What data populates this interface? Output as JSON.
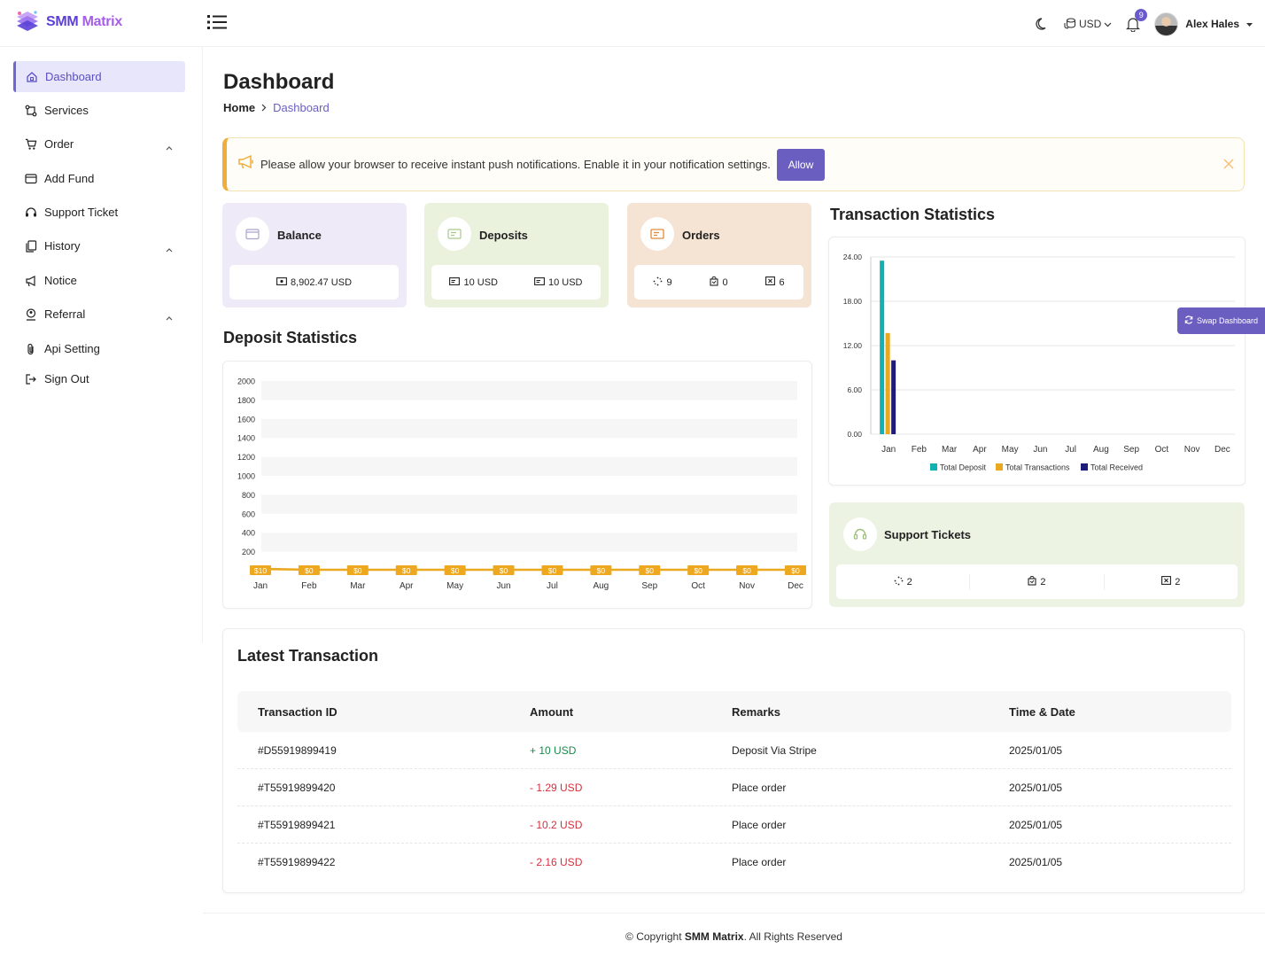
{
  "brand": {
    "part1": "SMM",
    "part2": "Matrix"
  },
  "header": {
    "currency": "USD",
    "notification_count": "9",
    "user_name": "Alex Hales"
  },
  "sidebar": {
    "items": [
      {
        "label": "Dashboard",
        "icon": "home-icon",
        "active": true
      },
      {
        "label": "Services",
        "icon": "services-icon"
      },
      {
        "label": "Order",
        "icon": "cart-icon",
        "expandable": true
      },
      {
        "label": "Add Fund",
        "icon": "wallet-icon"
      },
      {
        "label": "Support Ticket",
        "icon": "headset-icon"
      },
      {
        "label": "History",
        "icon": "copy-icon",
        "expandable": true
      },
      {
        "label": "Notice",
        "icon": "megaphone-icon"
      },
      {
        "label": "Referral",
        "icon": "referral-icon",
        "expandable": true
      },
      {
        "label": "Api Setting",
        "icon": "paperclip-icon"
      },
      {
        "label": "Sign Out",
        "icon": "sign-out-icon"
      }
    ]
  },
  "page": {
    "title": "Dashboard",
    "breadcrumb": {
      "home": "Home",
      "current": "Dashboard"
    }
  },
  "alert": {
    "text": "Please allow your browser to receive instant push notifications. Enable it in your notification settings.",
    "button": "Allow"
  },
  "cards": {
    "balance": {
      "title": "Balance",
      "value": "8,902.47 USD"
    },
    "deposits": {
      "title": "Deposits",
      "value1": "10 USD",
      "value2": "10 USD"
    },
    "orders": {
      "title": "Orders",
      "pending": "9",
      "processing": "0",
      "cancelled": "6"
    }
  },
  "deposit_stats": {
    "title": "Deposit Statistics",
    "labels": [
      "$10",
      "$0",
      "$0",
      "$0",
      "$0",
      "$0",
      "$0",
      "$0",
      "$0",
      "$0",
      "$0",
      "$0"
    ]
  },
  "transaction_stats": {
    "title": "Transaction Statistics",
    "swap_button": "Swap Dashboard"
  },
  "support": {
    "title": "Support Tickets",
    "open": "2",
    "answered": "2",
    "closed": "2"
  },
  "transactions": {
    "title": "Latest Transaction",
    "headers": [
      "Transaction ID",
      "Amount",
      "Remarks",
      "Time & Date"
    ],
    "rows": [
      {
        "id": "#D55919899419",
        "amount": "+ 10 USD",
        "remarks": "Deposit Via Stripe",
        "date": "2025/01/05"
      },
      {
        "id": "#T55919899420",
        "amount": "- 1.29 USD",
        "remarks": "Place order",
        "date": "2025/01/05"
      },
      {
        "id": "#T55919899421",
        "amount": "- 10.2 USD",
        "remarks": "Place order",
        "date": "2025/01/05"
      },
      {
        "id": "#T55919899422",
        "amount": "- 2.16 USD",
        "remarks": "Place order",
        "date": "2025/01/05"
      }
    ]
  },
  "footer": {
    "prefix": "© Copyright",
    "brand": "SMM Matrix",
    "suffix": ". All Rights Reserved"
  },
  "colors": {
    "accent": "#6a5fc1",
    "deposit": "#13b2b2",
    "transactions": "#e9a820",
    "received": "#1f1b7a"
  },
  "chart_data": [
    {
      "type": "area",
      "categories": [
        "Jan",
        "Feb",
        "Mar",
        "Apr",
        "May",
        "Jun",
        "Jul",
        "Aug",
        "Sep",
        "Oct",
        "Nov",
        "Dec"
      ],
      "series": [
        {
          "values": [
            10,
            0,
            0,
            0,
            0,
            0,
            0,
            0,
            0,
            0,
            0,
            0
          ]
        }
      ],
      "yticks": [
        "200",
        "400",
        "600",
        "800",
        "1000",
        "1200",
        "1400",
        "1600",
        "1800",
        "2000"
      ],
      "ylim": [
        0,
        2000
      ],
      "grid": true
    },
    {
      "type": "bar",
      "categories": [
        "Jan",
        "Feb",
        "Mar",
        "Apr",
        "May",
        "Jun",
        "Jul",
        "Aug",
        "Sep",
        "Oct",
        "Nov",
        "Dec"
      ],
      "series": [
        {
          "name": "Total Deposit",
          "values": [
            23.5,
            0,
            0,
            0,
            0,
            0,
            0,
            0,
            0,
            0,
            0,
            0
          ]
        },
        {
          "name": "Total Transactions",
          "values": [
            13.7,
            0,
            0,
            0,
            0,
            0,
            0,
            0,
            0,
            0,
            0,
            0
          ]
        },
        {
          "name": "Total Received",
          "values": [
            10,
            0,
            0,
            0,
            0,
            0,
            0,
            0,
            0,
            0,
            0,
            0
          ]
        }
      ],
      "yticks": [
        "0.00",
        "6.00",
        "12.00",
        "18.00",
        "24.00"
      ],
      "ylim": [
        0,
        24
      ],
      "legend": "bottom",
      "grid": true
    }
  ]
}
